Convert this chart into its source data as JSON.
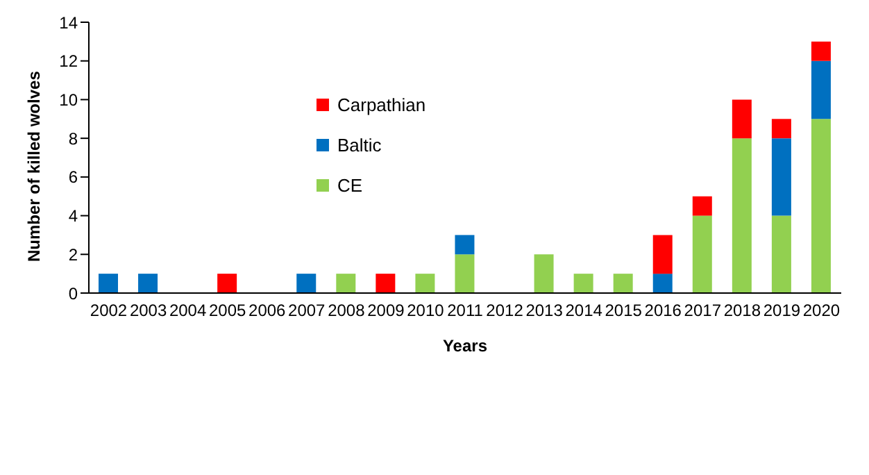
{
  "chart_data": {
    "type": "bar",
    "stacked": true,
    "xlabel": "Years",
    "ylabel": "Number of killed wolves",
    "categories": [
      "2002",
      "2003",
      "2004",
      "2005",
      "2006",
      "2007",
      "2008",
      "2009",
      "2010",
      "2011",
      "2012",
      "2013",
      "2014",
      "2015",
      "2016",
      "2017",
      "2018",
      "2019",
      "2020"
    ],
    "series": [
      {
        "name": "CE",
        "color": "#92d050",
        "values": [
          0,
          0,
          0,
          0,
          0,
          0,
          1,
          0,
          1,
          2,
          0,
          2,
          1,
          1,
          0,
          4,
          8,
          4,
          9
        ]
      },
      {
        "name": "Baltic",
        "color": "#0070c0",
        "values": [
          1,
          1,
          0,
          0,
          0,
          1,
          0,
          0,
          0,
          1,
          0,
          0,
          0,
          0,
          1,
          0,
          0,
          4,
          3
        ]
      },
      {
        "name": "Carpathian",
        "color": "#ff0000",
        "values": [
          0,
          0,
          0,
          1,
          0,
          0,
          0,
          1,
          0,
          0,
          0,
          0,
          0,
          0,
          2,
          1,
          2,
          1,
          1
        ]
      }
    ],
    "ylim": [
      0,
      14
    ],
    "yticks": [
      0,
      2,
      4,
      6,
      8,
      10,
      12,
      14
    ],
    "grid": false,
    "legend": "top left"
  }
}
